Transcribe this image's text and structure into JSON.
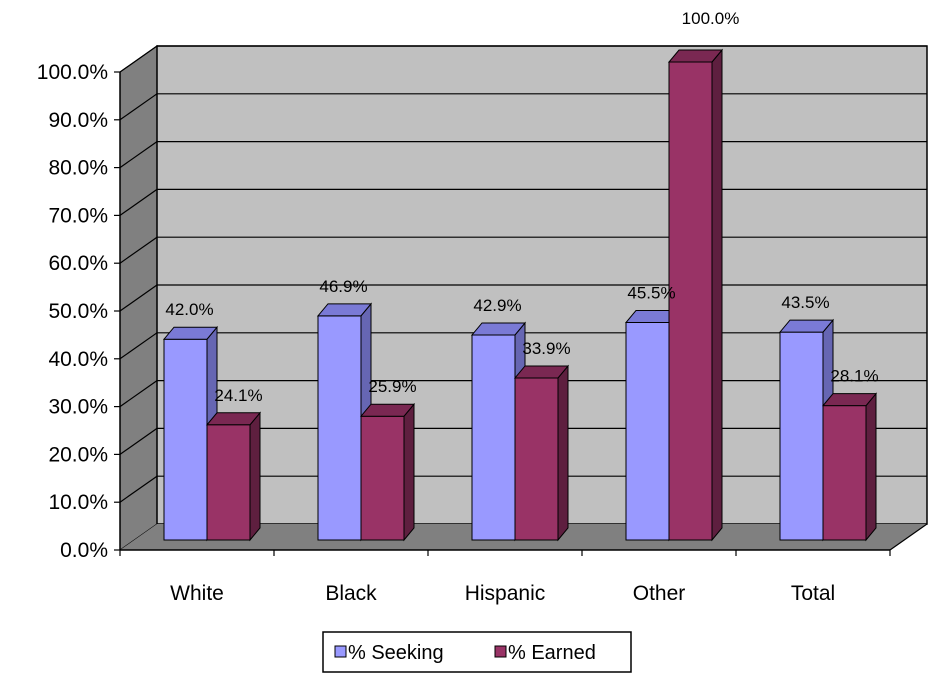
{
  "chart_data": {
    "type": "bar",
    "categories": [
      "White",
      "Black",
      "Hispanic",
      "Other",
      "Total"
    ],
    "series": [
      {
        "name": "% Seeking",
        "values": [
          42.0,
          46.9,
          42.9,
          45.5,
          43.5
        ],
        "labels": [
          "42.0%",
          "46.9%",
          "42.9%",
          "45.5%",
          "43.5%"
        ],
        "color": "#9999ff",
        "side_color": "#6666b3",
        "top_color": "#7a7ad6"
      },
      {
        "name": "% Earned",
        "values": [
          24.1,
          25.9,
          33.9,
          100.0,
          28.1
        ],
        "labels": [
          "24.1%",
          "25.9%",
          "33.9%",
          "100.0%",
          "28.1%"
        ],
        "color": "#993366",
        "side_color": "#5e1f3f",
        "top_color": "#7a2852"
      }
    ],
    "ylim": [
      0,
      100
    ],
    "yticks": [
      "0.0%",
      "10.0%",
      "20.0%",
      "30.0%",
      "40.0%",
      "50.0%",
      "60.0%",
      "70.0%",
      "80.0%",
      "90.0%",
      "100.0%"
    ],
    "title": "",
    "xlabel": "",
    "ylabel": "",
    "grid": true,
    "legend_position": "bottom",
    "three_d": true,
    "wall_color": "#c0c0c0",
    "floor_color": "#808080"
  }
}
